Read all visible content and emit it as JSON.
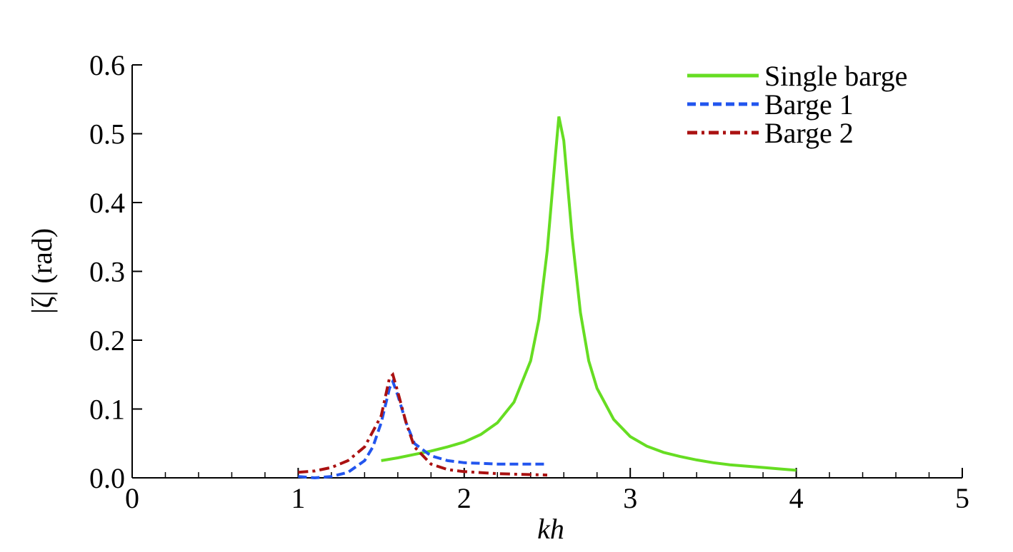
{
  "chart_data": {
    "type": "line",
    "x_label": "kh",
    "y_label": "|ζ| (rad)",
    "xlim": [
      0,
      5
    ],
    "xticks": [
      0,
      1,
      2,
      3,
      4,
      5
    ],
    "xminorticks": [
      0.2,
      0.4,
      0.6,
      0.8,
      1.2,
      1.4,
      1.6,
      1.8,
      2.2,
      2.4,
      2.6,
      2.8,
      3.2,
      3.4,
      3.6,
      3.8,
      4.2,
      4.4,
      4.6,
      4.8
    ],
    "ylim": [
      0,
      0.6
    ],
    "yticks": [
      {
        "value": 0,
        "label": "0.0"
      },
      0.1,
      0.2,
      0.3,
      0.4,
      0.5,
      0.6
    ],
    "legend": "upper right",
    "series": [
      {
        "name": "Single barge",
        "color": "#66dd22",
        "style": "solid",
        "x": [
          1.5,
          1.6,
          1.7,
          1.8,
          1.9,
          2.0,
          2.1,
          2.2,
          2.3,
          2.4,
          2.45,
          2.5,
          2.55,
          2.57,
          2.6,
          2.65,
          2.7,
          2.75,
          2.8,
          2.9,
          3.0,
          3.1,
          3.2,
          3.3,
          3.4,
          3.5,
          3.6,
          3.7,
          3.8,
          3.9,
          4.0
        ],
        "values": [
          0.025,
          0.029,
          0.034,
          0.039,
          0.045,
          0.052,
          0.063,
          0.08,
          0.11,
          0.17,
          0.23,
          0.33,
          0.47,
          0.525,
          0.49,
          0.35,
          0.24,
          0.17,
          0.13,
          0.085,
          0.06,
          0.046,
          0.037,
          0.031,
          0.026,
          0.022,
          0.019,
          0.017,
          0.015,
          0.013,
          0.011
        ]
      },
      {
        "name": "Barge 1",
        "color": "#2255ee",
        "style": "dashed",
        "x": [
          1.0,
          1.1,
          1.2,
          1.3,
          1.4,
          1.45,
          1.5,
          1.55,
          1.57,
          1.6,
          1.65,
          1.7,
          1.8,
          1.9,
          2.0,
          2.2,
          2.5
        ],
        "values": [
          0.002,
          0.0,
          0.002,
          0.008,
          0.025,
          0.045,
          0.08,
          0.13,
          0.14,
          0.12,
          0.08,
          0.05,
          0.032,
          0.025,
          0.022,
          0.02,
          0.02
        ]
      },
      {
        "name": "Barge 2",
        "color": "#aa1111",
        "style": "dashdot",
        "x": [
          1.0,
          1.1,
          1.2,
          1.3,
          1.4,
          1.5,
          1.55,
          1.57,
          1.6,
          1.65,
          1.7,
          1.8,
          1.9,
          2.0,
          2.2,
          2.5
        ],
        "values": [
          0.008,
          0.01,
          0.015,
          0.025,
          0.045,
          0.09,
          0.145,
          0.15,
          0.125,
          0.08,
          0.045,
          0.02,
          0.012,
          0.009,
          0.006,
          0.004
        ]
      }
    ]
  }
}
